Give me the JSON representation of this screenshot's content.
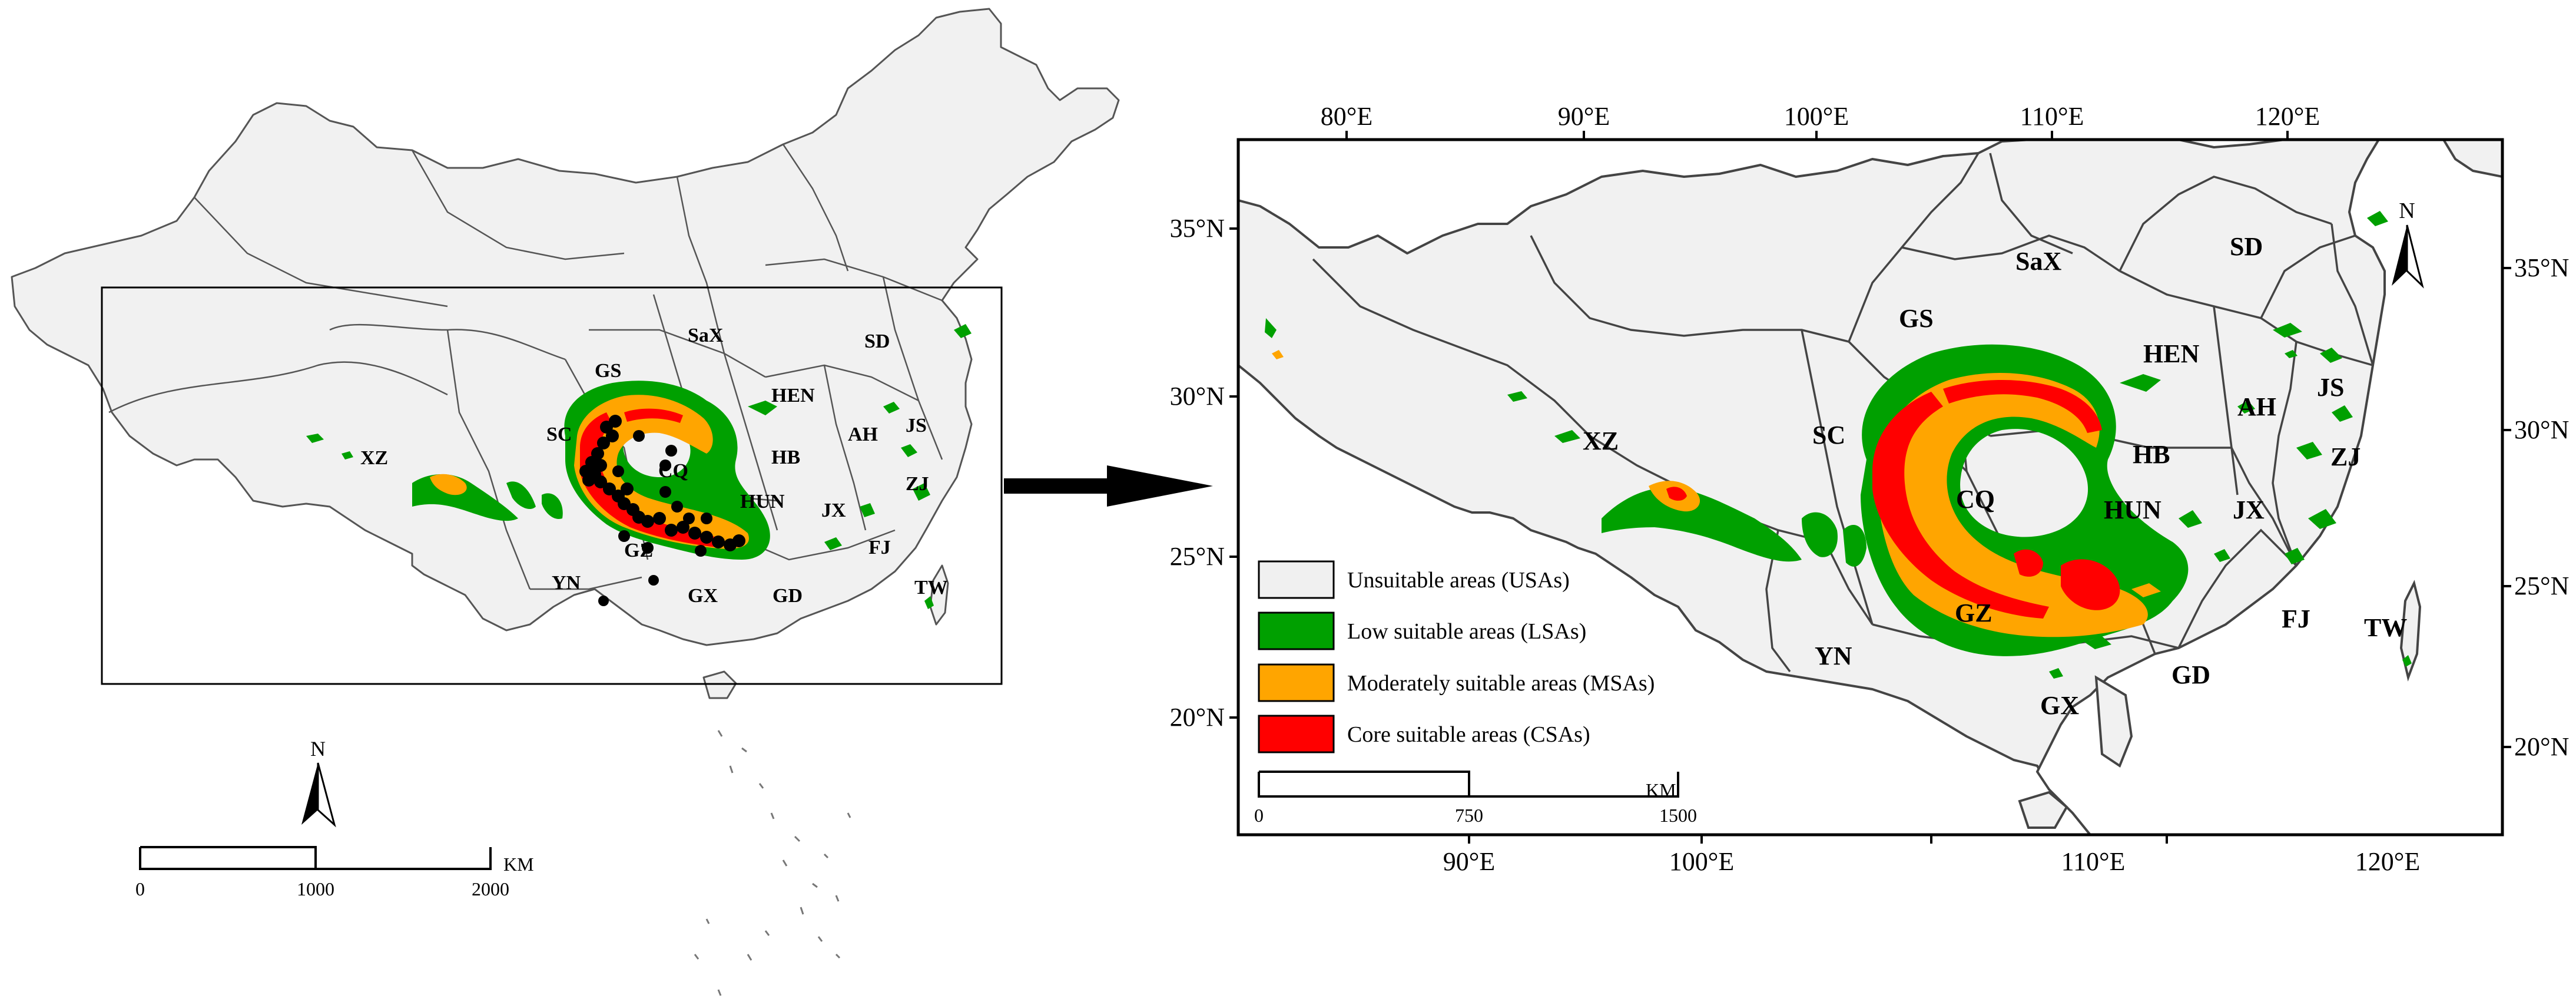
{
  "colors": {
    "unsuitable": "#f0f0f0",
    "low": "#00a000",
    "moderate": "#ffa500",
    "core": "#ff0000",
    "occurrence": "#000000"
  },
  "overview_map": {
    "north_label": "N",
    "scale": {
      "ticks": [
        "0",
        "1000",
        "2000"
      ],
      "unit": "KM"
    },
    "provinces": [
      "XZ",
      "SC",
      "GS",
      "SaX",
      "SD",
      "HEN",
      "AH",
      "JS",
      "ZJ",
      "HB",
      "CQ",
      "HUN",
      "JX",
      "FJ",
      "GZ",
      "YN",
      "GX",
      "GD",
      "TW"
    ]
  },
  "detail_map": {
    "north_label": "N",
    "top_ticks": [
      "80°E",
      "90°E",
      "100°E",
      "110°E",
      "120°E"
    ],
    "bottom_ticks": [
      "90°E",
      "100°E",
      "110°E",
      "120°E"
    ],
    "left_ticks": [
      "35°N",
      "30°N",
      "25°N",
      "20°N"
    ],
    "right_ticks": [
      "35°N",
      "30°N",
      "25°N",
      "20°N"
    ],
    "scale": {
      "ticks": [
        "0",
        "750",
        "1500"
      ],
      "unit": "KM"
    },
    "provinces": [
      "XZ",
      "SC",
      "GS",
      "SaX",
      "SD",
      "HEN",
      "AH",
      "JS",
      "ZJ",
      "HB",
      "CQ",
      "HUN",
      "JX",
      "FJ",
      "GZ",
      "YN",
      "GX",
      "GD",
      "TW"
    ],
    "legend": [
      {
        "label": "Unsuitable areas (USAs)",
        "color_key": "unsuitable"
      },
      {
        "label": "Low suitable areas (LSAs)",
        "color_key": "low"
      },
      {
        "label": "Moderately suitable areas (MSAs)",
        "color_key": "moderate"
      },
      {
        "label": "Core suitable areas (CSAs)",
        "color_key": "core"
      }
    ]
  }
}
